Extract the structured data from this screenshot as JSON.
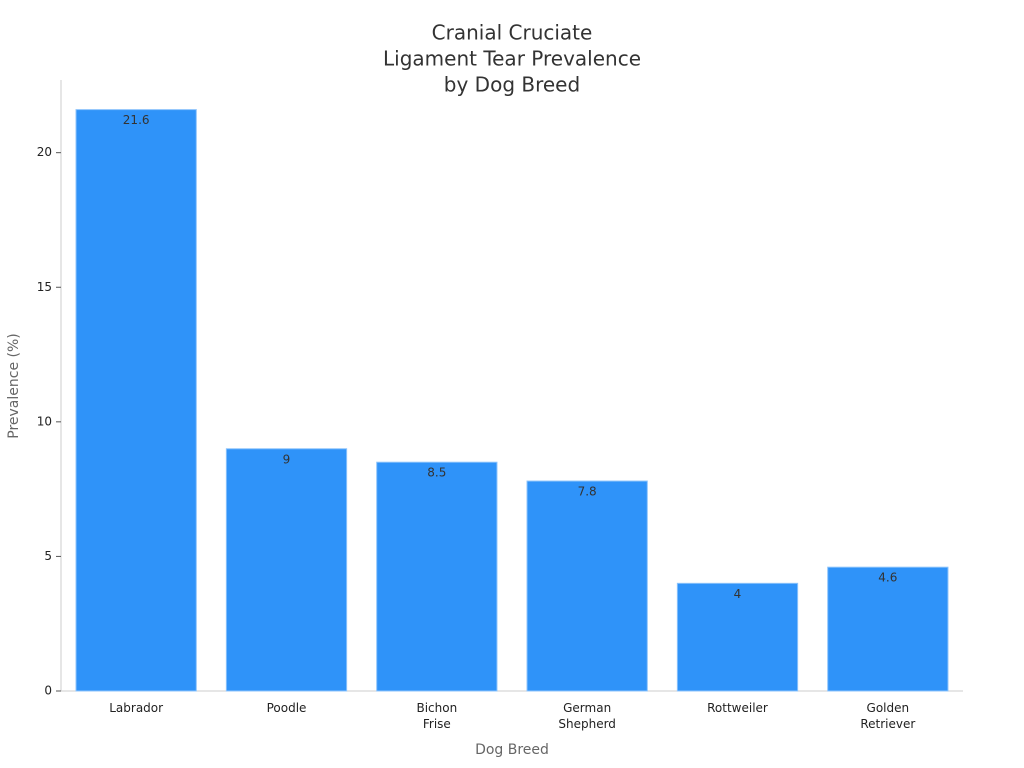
{
  "chart_data": {
    "type": "bar",
    "title": [
      "Cranial Cruciate",
      "Ligament Tear Prevalence",
      "by Dog Breed"
    ],
    "x_label": "Dog Breed",
    "y_label": "Prevalence (%)",
    "categories": [
      [
        "Labrador"
      ],
      [
        "Poodle"
      ],
      [
        "Bichon",
        "Frise"
      ],
      [
        "German",
        "Shepherd"
      ],
      [
        "Rottweiler"
      ],
      [
        "Golden",
        "Retriever"
      ]
    ],
    "values": [
      21.6,
      9,
      8.5,
      7.8,
      4,
      4.6
    ],
    "color": "#2f93f9",
    "ylim": [
      0,
      22.7
    ],
    "yticks": [
      0,
      5,
      10,
      15,
      20
    ]
  }
}
